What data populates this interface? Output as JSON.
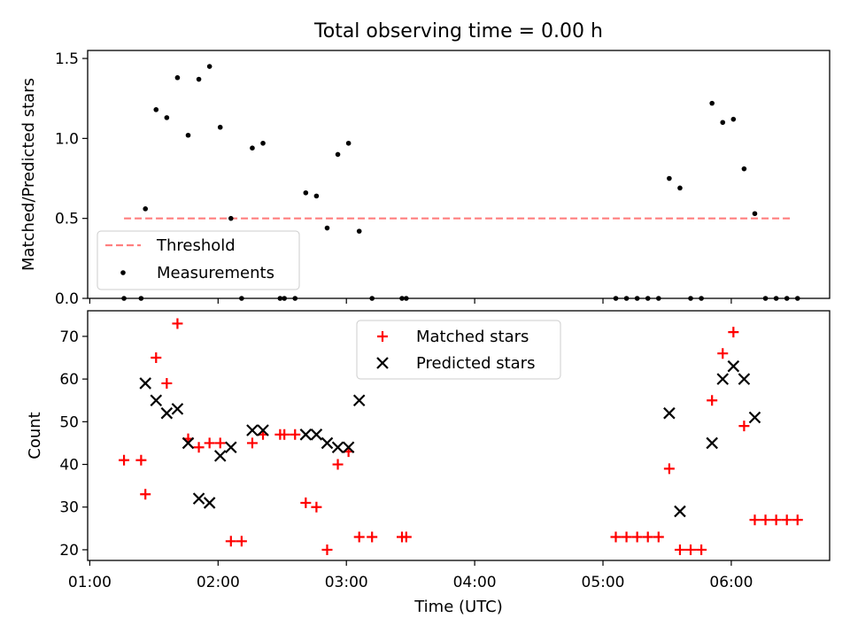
{
  "figure": {
    "title": "Total observing time = 0.00 h",
    "xlabel": "Time (UTC)"
  },
  "chart_data": [
    {
      "type": "scatter",
      "title": "Total observing time = 0.00 h",
      "xlabel": "",
      "ylabel": "Matched/Predicted stars",
      "xlim": [
        "00:59",
        "06:46"
      ],
      "ylim": [
        0,
        1.55
      ],
      "yticks": [
        "0.0",
        "0.5",
        "1.0",
        "1.5"
      ],
      "xticks": [
        "01:00",
        "02:00",
        "03:00",
        "04:00",
        "05:00",
        "06:00"
      ],
      "grid": false,
      "legend_position": "lower-left",
      "threshold": {
        "name": "Threshold",
        "value": 0.5,
        "x_start": "01:16",
        "x_end": "06:29",
        "color": "#ff7f7f",
        "style": "dashed"
      },
      "series": [
        {
          "name": "Measurements",
          "marker": "dot",
          "color": "#000000",
          "points": [
            [
              "01:16",
              0.0
            ],
            [
              "01:24",
              0.0
            ],
            [
              "01:26",
              0.56
            ],
            [
              "01:31",
              1.18
            ],
            [
              "01:36",
              1.13
            ],
            [
              "01:41",
              1.38
            ],
            [
              "01:46",
              1.02
            ],
            [
              "01:51",
              1.37
            ],
            [
              "01:56",
              1.45
            ],
            [
              "02:01",
              1.07
            ],
            [
              "02:06",
              0.5
            ],
            [
              "02:11",
              0.0
            ],
            [
              "02:16",
              0.94
            ],
            [
              "02:21",
              0.97
            ],
            [
              "02:29",
              0.0
            ],
            [
              "02:31",
              0.0
            ],
            [
              "02:36",
              0.0
            ],
            [
              "02:41",
              0.66
            ],
            [
              "02:46",
              0.64
            ],
            [
              "02:51",
              0.44
            ],
            [
              "02:56",
              0.9
            ],
            [
              "03:01",
              0.97
            ],
            [
              "03:06",
              0.42
            ],
            [
              "03:12",
              0.0
            ],
            [
              "03:26",
              0.0
            ],
            [
              "03:28",
              0.0
            ],
            [
              "05:06",
              0.0
            ],
            [
              "05:11",
              0.0
            ],
            [
              "05:16",
              0.0
            ],
            [
              "05:21",
              0.0
            ],
            [
              "05:26",
              0.0
            ],
            [
              "05:31",
              0.75
            ],
            [
              "05:36",
              0.69
            ],
            [
              "05:41",
              0.0
            ],
            [
              "05:46",
              0.0
            ],
            [
              "05:51",
              1.22
            ],
            [
              "05:56",
              1.1
            ],
            [
              "06:01",
              1.12
            ],
            [
              "06:06",
              0.81
            ],
            [
              "06:11",
              0.53
            ],
            [
              "06:16",
              0.0
            ],
            [
              "06:21",
              0.0
            ],
            [
              "06:26",
              0.0
            ],
            [
              "06:31",
              0.0
            ]
          ]
        }
      ]
    },
    {
      "type": "scatter",
      "title": "",
      "xlabel": "Time (UTC)",
      "ylabel": "Count",
      "xlim": [
        "00:59",
        "06:46"
      ],
      "ylim": [
        17.5,
        76
      ],
      "yticks": [
        "20",
        "30",
        "40",
        "50",
        "60",
        "70"
      ],
      "xticks": [
        "01:00",
        "02:00",
        "03:00",
        "04:00",
        "05:00",
        "06:00"
      ],
      "grid": false,
      "legend_position": "upper-center",
      "series": [
        {
          "name": "Matched stars",
          "marker": "plus",
          "color": "#ff0000",
          "points": [
            [
              "01:16",
              41
            ],
            [
              "01:24",
              41
            ],
            [
              "01:26",
              33
            ],
            [
              "01:31",
              65
            ],
            [
              "01:36",
              59
            ],
            [
              "01:41",
              73
            ],
            [
              "01:46",
              46
            ],
            [
              "01:51",
              44
            ],
            [
              "01:56",
              45
            ],
            [
              "02:01",
              45
            ],
            [
              "02:06",
              22
            ],
            [
              "02:11",
              22
            ],
            [
              "02:16",
              45
            ],
            [
              "02:21",
              47
            ],
            [
              "02:29",
              47
            ],
            [
              "02:31",
              47
            ],
            [
              "02:36",
              47
            ],
            [
              "02:41",
              31
            ],
            [
              "02:46",
              30
            ],
            [
              "02:51",
              20
            ],
            [
              "02:56",
              40
            ],
            [
              "03:01",
              43
            ],
            [
              "03:06",
              23
            ],
            [
              "03:12",
              23
            ],
            [
              "03:26",
              23
            ],
            [
              "03:28",
              23
            ],
            [
              "05:06",
              23
            ],
            [
              "05:11",
              23
            ],
            [
              "05:16",
              23
            ],
            [
              "05:21",
              23
            ],
            [
              "05:26",
              23
            ],
            [
              "05:31",
              39
            ],
            [
              "05:36",
              20
            ],
            [
              "05:41",
              20
            ],
            [
              "05:46",
              20
            ],
            [
              "05:51",
              55
            ],
            [
              "05:56",
              66
            ],
            [
              "06:01",
              71
            ],
            [
              "06:06",
              49
            ],
            [
              "06:11",
              27
            ],
            [
              "06:16",
              27
            ],
            [
              "06:21",
              27
            ],
            [
              "06:26",
              27
            ],
            [
              "06:31",
              27
            ]
          ]
        },
        {
          "name": "Predicted stars",
          "marker": "x",
          "color": "#000000",
          "points": [
            [
              "01:26",
              59
            ],
            [
              "01:31",
              55
            ],
            [
              "01:36",
              52
            ],
            [
              "01:41",
              53
            ],
            [
              "01:46",
              45
            ],
            [
              "01:51",
              32
            ],
            [
              "01:56",
              31
            ],
            [
              "02:01",
              42
            ],
            [
              "02:06",
              44
            ],
            [
              "02:16",
              48
            ],
            [
              "02:21",
              48
            ],
            [
              "02:41",
              47
            ],
            [
              "02:46",
              47
            ],
            [
              "02:51",
              45
            ],
            [
              "02:56",
              44
            ],
            [
              "03:01",
              44
            ],
            [
              "03:06",
              55
            ],
            [
              "05:31",
              52
            ],
            [
              "05:36",
              29
            ],
            [
              "05:51",
              45
            ],
            [
              "05:56",
              60
            ],
            [
              "06:01",
              63
            ],
            [
              "06:06",
              60
            ],
            [
              "06:11",
              51
            ]
          ]
        }
      ]
    }
  ]
}
